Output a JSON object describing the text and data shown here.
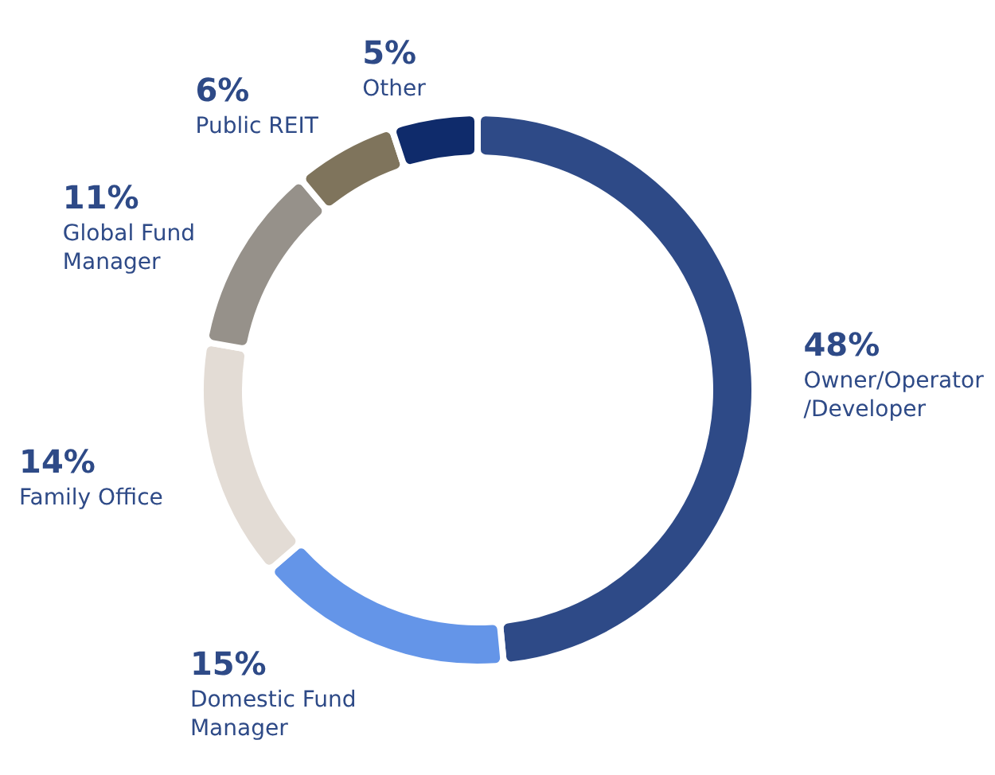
{
  "chart_data": {
    "type": "donut",
    "categories": [
      "Owner/Operator /Developer",
      "Domestic Fund Manager",
      "Family Office",
      "Global Fund Manager",
      "Public REIT",
      "Other"
    ],
    "values": [
      48,
      15,
      14,
      11,
      6,
      5
    ],
    "value_labels": [
      "48%",
      "15%",
      "14%",
      "11%",
      "6%",
      "5%"
    ],
    "colors": [
      "#2e4a87",
      "#6495e8",
      "#e3dcd5",
      "#96918a",
      "#7f745c",
      "#0f2b6b"
    ]
  }
}
